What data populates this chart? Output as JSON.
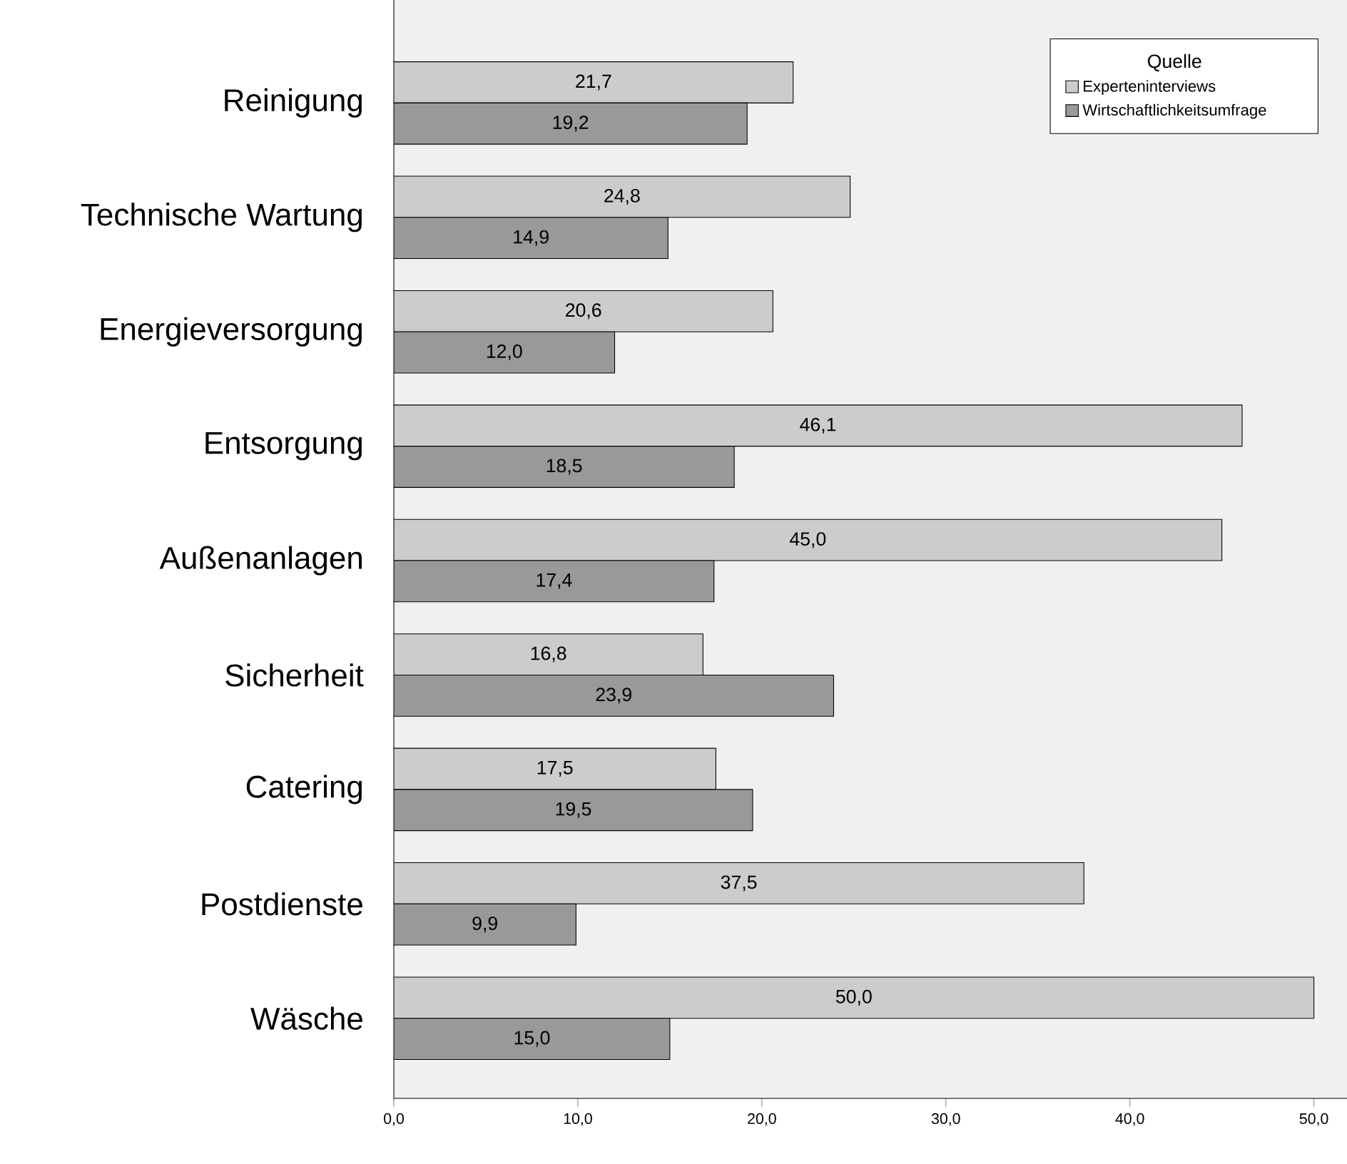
{
  "chart_data": {
    "type": "bar",
    "orientation": "horizontal",
    "categories": [
      "Reinigung",
      "Technische Wartung",
      "Energieversorgung",
      "Entsorgung",
      "Außenanlagen",
      "Sicherheit",
      "Catering",
      "Postdienste",
      "Wäsche"
    ],
    "legend_title": "Quelle",
    "legend": "top right",
    "grid": false,
    "xlim": [
      0,
      51.8
    ],
    "xticks": [
      {
        "value": 0,
        "label": "0,0"
      },
      {
        "value": 10,
        "label": "10,0"
      },
      {
        "value": 20,
        "label": "20,0"
      },
      {
        "value": 30,
        "label": "30,0"
      },
      {
        "value": 40,
        "label": "40,0"
      },
      {
        "value": 50,
        "label": "50,0"
      }
    ],
    "series": [
      {
        "name": "Experteninterviews",
        "color": "#cccccc",
        "values": [
          21.7,
          24.8,
          20.6,
          46.1,
          45.0,
          16.8,
          17.5,
          37.5,
          50.0
        ],
        "value_labels": [
          "21,7",
          "24,8",
          "20,6",
          "46,1",
          "45,0",
          "16,8",
          "17,5",
          "37,5",
          "50,0"
        ]
      },
      {
        "name": "Wirtschaftlichkeitsumfrage",
        "color": "#999999",
        "values": [
          19.2,
          14.9,
          12.0,
          18.5,
          17.4,
          23.9,
          19.5,
          9.9,
          15.0
        ],
        "value_labels": [
          "19,2",
          "14,9",
          "12,0",
          "18,5",
          "17,4",
          "23,9",
          "19,5",
          "9,9",
          "15,0"
        ]
      }
    ]
  }
}
